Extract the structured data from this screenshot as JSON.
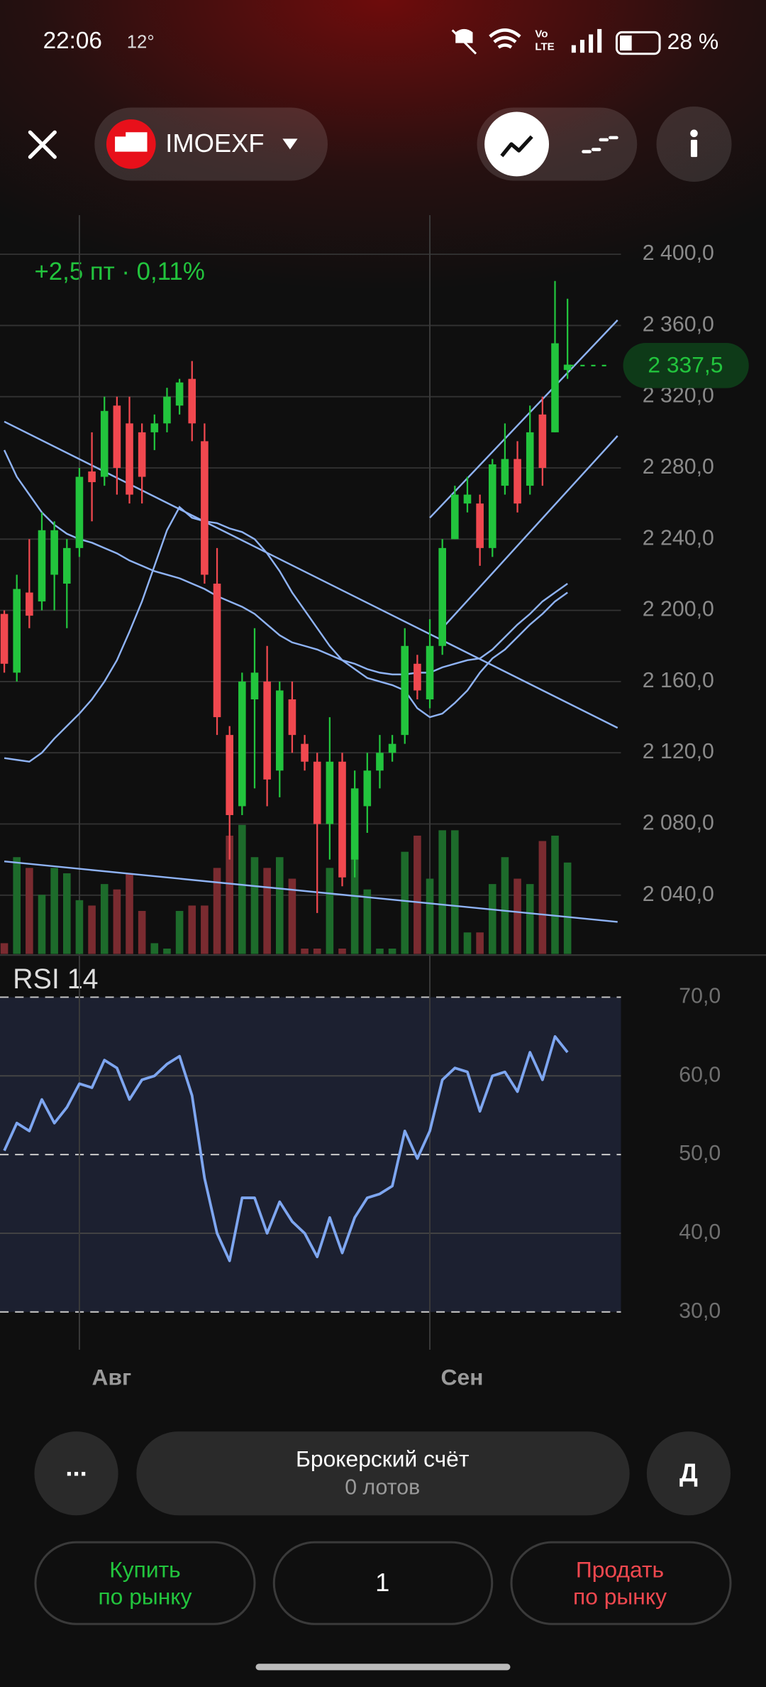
{
  "status_bar": {
    "time": "22:06",
    "temp": "12°",
    "volte": [
      "Vo",
      "LTE"
    ],
    "battery": "28 %"
  },
  "header": {
    "ticker": "IMOEXF"
  },
  "chart_data": {
    "type": "candlestick",
    "change_label": "+2,5 пт · 0,11%",
    "categories": [
      null,
      null,
      null,
      null,
      null,
      null,
      "Авг",
      null,
      null,
      null,
      null,
      null,
      null,
      null,
      null,
      null,
      null,
      null,
      null,
      null,
      null,
      null,
      null,
      null,
      null,
      null,
      null,
      null,
      null,
      null,
      null,
      null,
      null,
      null,
      "Сен",
      null,
      null,
      null,
      null,
      null,
      null,
      null,
      null,
      null,
      null,
      null
    ],
    "open": [
      2198,
      2165,
      2210,
      2205,
      2220,
      2215,
      2235,
      2278,
      2275,
      2315,
      2305,
      2300,
      2300,
      2305,
      2315,
      2330,
      2295,
      2215,
      2130,
      2090,
      2150,
      2160,
      2110,
      2150,
      2125,
      2115,
      2080,
      2115,
      2060,
      2090,
      2110,
      2120,
      2130,
      2170,
      2150,
      2180,
      2240,
      2260,
      2260,
      2235,
      2270,
      2285,
      2270,
      2310,
      2300,
      2335
    ],
    "high": [
      2200,
      2220,
      2240,
      2255,
      2250,
      2240,
      2280,
      2300,
      2320,
      2320,
      2320,
      2305,
      2310,
      2325,
      2330,
      2340,
      2305,
      2235,
      2135,
      2165,
      2190,
      2180,
      2160,
      2160,
      2130,
      2120,
      2140,
      2120,
      2110,
      2120,
      2130,
      2130,
      2190,
      2175,
      2195,
      2240,
      2270,
      2275,
      2265,
      2285,
      2305,
      2295,
      2315,
      2320,
      2385,
      2375
    ],
    "low": [
      2165,
      2160,
      2190,
      2200,
      2200,
      2190,
      2230,
      2250,
      2270,
      2265,
      2260,
      2260,
      2290,
      2300,
      2310,
      2295,
      2215,
      2130,
      2060,
      2085,
      2100,
      2090,
      2095,
      2120,
      2110,
      2030,
      2060,
      2045,
      2050,
      2075,
      2100,
      2115,
      2125,
      2150,
      2145,
      2175,
      2240,
      2255,
      2225,
      2230,
      2265,
      2255,
      2265,
      2270,
      2300,
      2330
    ],
    "close": [
      2170,
      2212,
      2197,
      2245,
      2245,
      2235,
      2275,
      2272,
      2312,
      2280,
      2265,
      2275,
      2305,
      2320,
      2328,
      2305,
      2220,
      2140,
      2085,
      2160,
      2165,
      2105,
      2155,
      2130,
      2115,
      2080,
      2115,
      2050,
      2100,
      2110,
      2120,
      2125,
      2180,
      2155,
      2180,
      2235,
      2265,
      2265,
      2235,
      2282,
      2285,
      2260,
      2300,
      2280,
      2350,
      2338
    ],
    "up_color": "#22c43d",
    "down_color": "#f0484f",
    "ylim": [
      2007,
      2422
    ],
    "yticks": [
      {
        "value": 2400,
        "label": "2 400,0"
      },
      {
        "value": 2360,
        "label": "2 360,0"
      },
      {
        "value": 2320,
        "label": "2 320,0"
      },
      {
        "value": 2280,
        "label": "2 280,0"
      },
      {
        "value": 2240,
        "label": "2 240,0"
      },
      {
        "value": 2200,
        "label": "2 200,0"
      },
      {
        "value": 2160,
        "label": "2 160,0"
      },
      {
        "value": 2120,
        "label": "2 120,0"
      },
      {
        "value": 2080,
        "label": "2 080,0"
      },
      {
        "value": 2040,
        "label": "2 040,0"
      }
    ],
    "grid": true,
    "last_price": {
      "value": 2337.5,
      "label": "2 337,5"
    },
    "moving_averages": [
      {
        "color": "#8fb3f5",
        "values": [
          2117,
          2116,
          2115,
          2120,
          2128,
          2135,
          2142,
          2150,
          2160,
          2172,
          2188,
          2205,
          2225,
          2245,
          2258,
          2252,
          2250,
          2249,
          2246,
          2244,
          2240,
          2232,
          2222,
          2210,
          2200,
          2190,
          2180,
          2172,
          2167,
          2162,
          2160,
          2158,
          2155,
          2145,
          2140,
          2142,
          2148,
          2155,
          2165,
          2173,
          2178,
          2185,
          2192,
          2198,
          2205,
          2210
        ]
      },
      {
        "color": "#8fb3f5",
        "values": [
          2290,
          2275,
          2265,
          2255,
          2248,
          2243,
          2240,
          2238,
          2235,
          2232,
          2228,
          2225,
          2222,
          2220,
          2218,
          2215,
          2212,
          2208,
          2205,
          2202,
          2198,
          2192,
          2186,
          2182,
          2180,
          2178,
          2175,
          2172,
          2170,
          2167,
          2165,
          2164,
          2164,
          2165,
          2165,
          2168,
          2170,
          2172,
          2173,
          2178,
          2185,
          2192,
          2198,
          2205,
          2210,
          2215
        ]
      }
    ],
    "trendlines": [
      {
        "from": [
          0,
          2306
        ],
        "to": [
          49,
          2134
        ]
      },
      {
        "from": [
          0,
          2059
        ],
        "to": [
          49,
          2025
        ]
      },
      {
        "from": [
          34,
          2252
        ],
        "to": [
          49,
          2363
        ]
      },
      {
        "from": [
          35,
          2190
        ],
        "to": [
          49,
          2298
        ]
      }
    ],
    "trend_color": "#8fb3f5",
    "volume": {
      "up_color": "#1d6b2b",
      "down_color": "#7a2b30",
      "values": [
        10,
        90,
        80,
        55,
        80,
        75,
        50,
        45,
        65,
        60,
        75,
        40,
        10,
        5,
        40,
        45,
        45,
        80,
        110,
        120,
        90,
        80,
        90,
        70,
        5,
        5,
        80,
        5,
        110,
        60,
        5,
        5,
        95,
        110,
        70,
        115,
        115,
        20,
        20,
        65,
        90,
        70,
        65,
        105,
        110,
        85
      ]
    },
    "rsi": {
      "title": "RSI 14",
      "color": "#7ea6f0",
      "values": [
        50.5,
        54,
        53,
        57,
        54,
        56,
        59,
        58.5,
        62,
        61,
        57,
        59.5,
        60,
        61.5,
        62.5,
        57.5,
        47,
        40,
        36.5,
        44.5,
        44.5,
        40,
        44,
        41.5,
        40,
        37,
        42,
        37.5,
        42,
        44.5,
        45,
        46,
        53,
        49.5,
        53,
        59.5,
        61,
        60.5,
        55.5,
        60,
        60.5,
        58,
        63,
        59.5,
        65,
        63
      ],
      "ylim": [
        25.2,
        74.4
      ],
      "yticks": [
        {
          "value": 70,
          "label": "70,0"
        },
        {
          "value": 60,
          "label": "60,0"
        },
        {
          "value": 50,
          "label": "50,0"
        },
        {
          "value": 40,
          "label": "40,0"
        },
        {
          "value": 30,
          "label": "30,0"
        }
      ]
    }
  },
  "footer": {
    "more": "...",
    "account": "Брокерский счёт",
    "lots": "0 лотов",
    "mode": "Д",
    "buy": [
      "Купить",
      "по рынку"
    ],
    "quantity": "1",
    "sell": [
      "Продать",
      "по рынку"
    ]
  }
}
